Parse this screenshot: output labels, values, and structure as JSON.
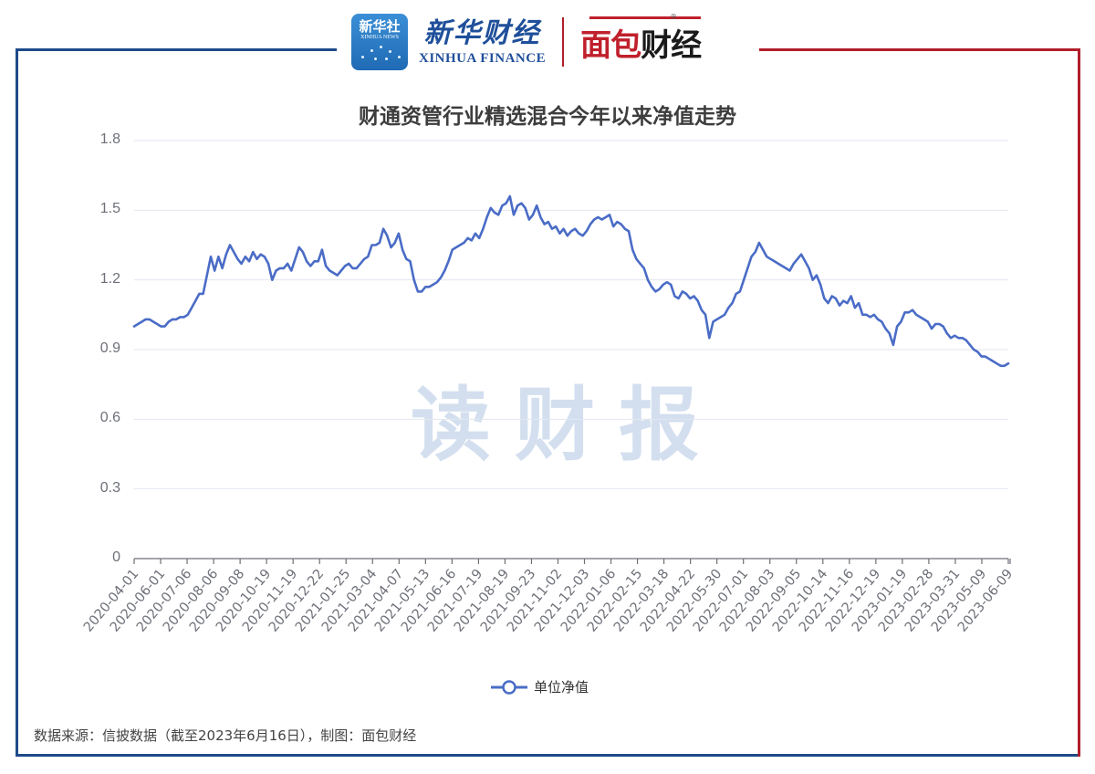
{
  "header": {
    "xinhua_logo": {
      "cn": "新华社",
      "en": "XINHUA NEWS"
    },
    "xinhua_finance": {
      "cn": "新华财经",
      "en": "XINHUA FINANCE"
    },
    "mianbao": {
      "cn_red": "面包",
      "cn_black": "财经",
      "registered": "®"
    }
  },
  "watermark": "读财报",
  "colors": {
    "line": "#4a6cc6",
    "grid": "#e3e6ef",
    "frame_blue": "#1d4a8a",
    "frame_red": "#b01e2a",
    "axis_text": "#6e7079"
  },
  "legend": {
    "label": "单位净值"
  },
  "source": "数据来源：信披数据（截至2023年6月16日），制图：面包财经",
  "chart_data": {
    "type": "line",
    "title": "财通资管行业精选混合今年以来净值走势",
    "xlabel": "",
    "ylabel": "",
    "ylim": [
      0,
      1.8
    ],
    "yticks": [
      "1.8",
      "1.5",
      "1.2",
      "0.9",
      "0.6",
      "0.3",
      "0"
    ],
    "grid": true,
    "legend_position": "bottom",
    "categories": [
      "2020-04-01",
      "2020-06-01",
      "2020-07-06",
      "2020-08-06",
      "2020-09-08",
      "2020-10-19",
      "2020-11-19",
      "2020-12-22",
      "2021-01-25",
      "2021-03-04",
      "2021-04-07",
      "2021-05-13",
      "2021-06-16",
      "2021-07-19",
      "2021-08-19",
      "2021-09-23",
      "2021-11-02",
      "2021-12-03",
      "2022-01-06",
      "2022-02-15",
      "2022-03-18",
      "2022-04-22",
      "2022-05-30",
      "2022-07-01",
      "2022-08-03",
      "2022-09-05",
      "2022-10-14",
      "2022-11-16",
      "2022-12-19",
      "2023-01-19",
      "2023-02-28",
      "2023-03-31",
      "2023-05-09",
      "2023-06-09"
    ],
    "series": [
      {
        "name": "单位净值",
        "values": [
          1.0,
          1.02,
          1.24,
          1.28,
          1.25,
          1.29,
          1.23,
          1.28,
          1.38,
          1.2,
          1.18,
          1.33,
          1.38,
          1.5,
          1.51,
          1.41,
          1.4,
          1.46,
          1.42,
          1.19,
          1.13,
          1.02,
          1.1,
          1.33,
          1.26,
          1.2,
          1.11,
          1.05,
          0.95,
          1.06,
          1.01,
          0.95,
          0.87,
          0.83
        ]
      }
    ],
    "detail_values": [
      1.0,
      1.01,
      1.02,
      1.03,
      1.03,
      1.02,
      1.01,
      1.0,
      1.0,
      1.02,
      1.03,
      1.03,
      1.04,
      1.04,
      1.05,
      1.08,
      1.11,
      1.14,
      1.14,
      1.22,
      1.3,
      1.24,
      1.3,
      1.25,
      1.31,
      1.35,
      1.32,
      1.29,
      1.27,
      1.3,
      1.28,
      1.32,
      1.29,
      1.31,
      1.3,
      1.27,
      1.2,
      1.24,
      1.25,
      1.25,
      1.27,
      1.24,
      1.29,
      1.34,
      1.32,
      1.28,
      1.26,
      1.28,
      1.28,
      1.33,
      1.26,
      1.24,
      1.23,
      1.22,
      1.24,
      1.26,
      1.27,
      1.25,
      1.25,
      1.27,
      1.29,
      1.3,
      1.35,
      1.35,
      1.36,
      1.42,
      1.39,
      1.34,
      1.36,
      1.4,
      1.33,
      1.29,
      1.28,
      1.2,
      1.15,
      1.15,
      1.17,
      1.17,
      1.18,
      1.19,
      1.21,
      1.24,
      1.28,
      1.33,
      1.34,
      1.35,
      1.36,
      1.38,
      1.37,
      1.4,
      1.38,
      1.42,
      1.47,
      1.51,
      1.49,
      1.48,
      1.52,
      1.53,
      1.56,
      1.48,
      1.52,
      1.53,
      1.51,
      1.46,
      1.48,
      1.52,
      1.47,
      1.44,
      1.45,
      1.42,
      1.43,
      1.4,
      1.42,
      1.39,
      1.41,
      1.42,
      1.4,
      1.39,
      1.41,
      1.44,
      1.46,
      1.47,
      1.46,
      1.47,
      1.48,
      1.43,
      1.45,
      1.44,
      1.42,
      1.41,
      1.33,
      1.29,
      1.27,
      1.25,
      1.2,
      1.17,
      1.15,
      1.16,
      1.18,
      1.19,
      1.18,
      1.13,
      1.12,
      1.15,
      1.14,
      1.12,
      1.13,
      1.11,
      1.07,
      1.05,
      0.95,
      1.02,
      1.03,
      1.04,
      1.05,
      1.08,
      1.1,
      1.14,
      1.15,
      1.2,
      1.25,
      1.3,
      1.32,
      1.36,
      1.33,
      1.3,
      1.29,
      1.28,
      1.27,
      1.26,
      1.25,
      1.24,
      1.27,
      1.29,
      1.31,
      1.28,
      1.25,
      1.2,
      1.22,
      1.18,
      1.12,
      1.1,
      1.13,
      1.12,
      1.09,
      1.11,
      1.1,
      1.13,
      1.08,
      1.1,
      1.05,
      1.05,
      1.04,
      1.05,
      1.03,
      1.02,
      0.99,
      0.97,
      0.92,
      1.0,
      1.02,
      1.06,
      1.06,
      1.07,
      1.05,
      1.04,
      1.03,
      1.02,
      0.99,
      1.01,
      1.01,
      1.0,
      0.97,
      0.95,
      0.96,
      0.95,
      0.95,
      0.94,
      0.92,
      0.9,
      0.89,
      0.87,
      0.87,
      0.86,
      0.85,
      0.84,
      0.83,
      0.83,
      0.84
    ]
  }
}
